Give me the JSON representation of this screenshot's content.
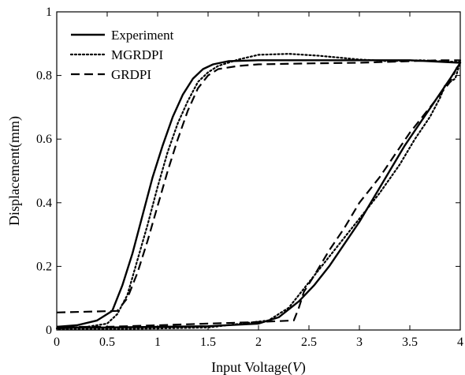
{
  "chart_data": {
    "type": "line",
    "title": "",
    "xlabel": "Input Voltage(V)",
    "xlabel_parts": [
      "Input Voltage(",
      "V",
      ")"
    ],
    "ylabel": "Displacement(mm)",
    "xlim": [
      0,
      4
    ],
    "ylim": [
      0,
      1
    ],
    "xticks": [
      0,
      0.5,
      1,
      1.5,
      2,
      2.5,
      3,
      3.5,
      4
    ],
    "xtick_labels": [
      "0",
      "0.5",
      "1",
      "1.5",
      "2",
      "2.5",
      "3",
      "3.5",
      "4"
    ],
    "yticks": [
      0,
      0.2,
      0.4,
      0.6,
      0.8,
      1
    ],
    "ytick_labels": [
      "0",
      "0.2",
      "0.4",
      "0.6",
      "0.8",
      "1"
    ],
    "grid": false,
    "legend_position": "top-left",
    "series": [
      {
        "name": "Experiment",
        "style": "solid",
        "x": [
          0,
          0.2,
          0.4,
          0.55,
          0.65,
          0.75,
          0.85,
          0.95,
          1.05,
          1.15,
          1.25,
          1.35,
          1.45,
          1.55,
          1.7,
          2.0,
          2.5,
          3.0,
          3.5,
          4.0,
          3.9,
          3.75,
          3.6,
          3.45,
          3.3,
          3.15,
          3.0,
          2.85,
          2.7,
          2.55,
          2.4,
          2.2,
          2.0,
          1.5,
          1.0,
          0.5,
          0
        ],
        "y": [
          0.01,
          0.015,
          0.03,
          0.06,
          0.14,
          0.24,
          0.36,
          0.48,
          0.58,
          0.67,
          0.74,
          0.79,
          0.82,
          0.835,
          0.845,
          0.848,
          0.848,
          0.848,
          0.848,
          0.84,
          0.79,
          0.72,
          0.65,
          0.58,
          0.5,
          0.42,
          0.34,
          0.27,
          0.2,
          0.14,
          0.09,
          0.04,
          0.02,
          0.012,
          0.01,
          0.008,
          0.008
        ]
      },
      {
        "name": "MGRDPI",
        "style": "dotted",
        "x": [
          0,
          0.3,
          0.5,
          0.6,
          0.7,
          0.8,
          0.9,
          1.0,
          1.1,
          1.2,
          1.3,
          1.4,
          1.5,
          1.6,
          1.8,
          2.0,
          2.3,
          2.6,
          3.0,
          3.3,
          3.6,
          3.8,
          4.0,
          3.95,
          3.85,
          3.8,
          3.7,
          3.55,
          3.4,
          3.2,
          3.0,
          2.8,
          2.6,
          2.45,
          2.3,
          2.1,
          1.5,
          1.0,
          0.5,
          0
        ],
        "y": [
          0.005,
          0.01,
          0.02,
          0.05,
          0.11,
          0.22,
          0.33,
          0.45,
          0.56,
          0.65,
          0.72,
          0.78,
          0.81,
          0.83,
          0.85,
          0.865,
          0.868,
          0.862,
          0.85,
          0.845,
          0.848,
          0.845,
          0.842,
          0.79,
          0.77,
          0.73,
          0.67,
          0.6,
          0.52,
          0.43,
          0.35,
          0.27,
          0.19,
          0.13,
          0.07,
          0.03,
          0.008,
          0.005,
          0.003,
          0.003
        ]
      },
      {
        "name": "GRDPI",
        "style": "dashed",
        "x": [
          0,
          0.6,
          0.7,
          0.8,
          0.9,
          1.0,
          1.1,
          1.2,
          1.3,
          1.4,
          1.5,
          1.6,
          1.8,
          2.0,
          2.5,
          3.0,
          3.5,
          3.8,
          4.0,
          3.9,
          3.7,
          3.5,
          3.35,
          3.2,
          3.0,
          2.85,
          2.7,
          2.55,
          2.45,
          2.4,
          2.35,
          2.0,
          1.5,
          1.0,
          0.5,
          0
        ],
        "y": [
          0.055,
          0.06,
          0.1,
          0.18,
          0.28,
          0.39,
          0.5,
          0.6,
          0.69,
          0.76,
          0.8,
          0.82,
          0.83,
          0.835,
          0.838,
          0.84,
          0.845,
          0.848,
          0.848,
          0.78,
          0.7,
          0.62,
          0.55,
          0.48,
          0.4,
          0.32,
          0.25,
          0.17,
          0.12,
          0.07,
          0.03,
          0.025,
          0.02,
          0.015,
          0.01,
          0.01
        ]
      }
    ]
  }
}
